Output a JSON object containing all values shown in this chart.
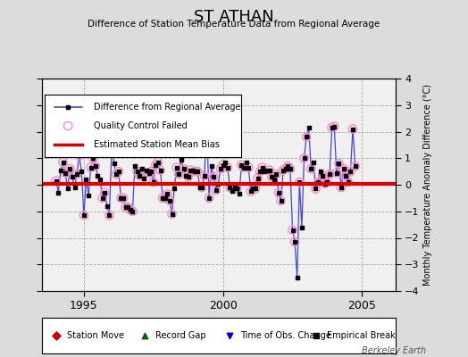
{
  "title": "ST ATHAN",
  "subtitle": "Difference of Station Temperature Data from Regional Average",
  "ylabel_right": "Monthly Temperature Anomaly Difference (°C)",
  "xlim": [
    1993.5,
    2006.2
  ],
  "ylim": [
    -4,
    4
  ],
  "yticks": [
    -4,
    -3,
    -2,
    -1,
    0,
    1,
    2,
    3,
    4
  ],
  "xticks": [
    1995,
    2000,
    2005
  ],
  "bias_value": 0.05,
  "background_color": "#dcdcdc",
  "plot_bg_color": "#f0f0f0",
  "line_color": "#4444dd",
  "dot_color": "#000000",
  "bias_color": "#dd0000",
  "qc_circle_color": "#ff88cc",
  "watermark": "Berkeley Earth",
  "t_start": 1994.0,
  "time_series": [
    0.15,
    -0.3,
    0.55,
    0.85,
    0.45,
    -0.15,
    0.6,
    0.3,
    -0.1,
    0.4,
    1.1,
    0.5,
    -1.15,
    0.2,
    -0.4,
    0.65,
    1.0,
    0.7,
    0.35,
    0.2,
    -0.5,
    -0.3,
    -0.8,
    -1.15,
    1.4,
    0.8,
    0.4,
    0.5,
    -0.5,
    -0.5,
    -0.85,
    -0.85,
    -0.95,
    -1.0,
    0.7,
    0.5,
    0.35,
    0.6,
    0.25,
    0.55,
    0.45,
    0.5,
    0.1,
    0.75,
    0.85,
    0.55,
    -0.5,
    -0.5,
    -0.35,
    -0.6,
    -1.1,
    -0.15,
    0.65,
    0.4,
    0.95,
    0.6,
    0.35,
    0.3,
    0.55,
    0.55,
    0.5,
    0.5,
    -0.1,
    -0.1,
    0.35,
    2.25,
    -0.5,
    0.7,
    0.3,
    -0.2,
    0.05,
    0.6,
    0.75,
    0.85,
    0.65,
    -0.1,
    -0.25,
    -0.1,
    -0.15,
    -0.35,
    0.75,
    0.65,
    0.85,
    0.65,
    -0.25,
    -0.15,
    -0.15,
    0.25,
    0.5,
    0.65,
    0.5,
    0.55,
    0.55,
    0.3,
    0.2,
    0.4,
    -0.3,
    -0.6,
    0.55,
    0.6,
    0.7,
    0.6,
    -1.7,
    -2.15,
    -3.5,
    0.1,
    -1.6,
    1.0,
    1.8,
    2.15,
    0.6,
    0.85,
    -0.15,
    0.1,
    0.5,
    0.35,
    0.05,
    0.1,
    0.4,
    2.15,
    2.2,
    0.45,
    0.8,
    -0.1,
    0.6,
    0.35,
    0.1,
    0.5,
    2.1,
    0.7
  ],
  "qc_fail_indices": [
    0,
    3,
    4,
    6,
    9,
    10,
    12,
    15,
    16,
    17,
    20,
    21,
    23,
    24,
    26,
    27,
    28,
    29,
    30,
    31,
    32,
    33,
    35,
    36,
    40,
    41,
    42,
    43,
    44,
    45,
    46,
    47,
    48,
    49,
    50,
    52,
    53,
    55,
    57,
    58,
    60,
    61,
    63,
    64,
    66,
    68,
    69,
    71,
    72,
    74,
    75,
    77,
    78,
    80,
    81,
    83,
    84,
    86,
    87,
    88,
    89,
    92,
    93,
    95,
    96,
    97,
    98,
    99,
    100,
    101,
    102,
    103,
    105,
    107,
    108,
    110,
    112,
    113,
    115,
    116,
    117,
    118,
    119,
    120,
    121,
    122,
    123,
    124,
    125,
    126,
    127,
    128,
    129
  ],
  "bottom_legend": [
    {
      "color": "#cc0000",
      "marker": "D",
      "label": "Station Move"
    },
    {
      "color": "#006600",
      "marker": "^",
      "label": "Record Gap"
    },
    {
      "color": "#0000cc",
      "marker": "v",
      "label": "Time of Obs. Change"
    },
    {
      "color": "#111111",
      "marker": "s",
      "label": "Empirical Break"
    }
  ]
}
